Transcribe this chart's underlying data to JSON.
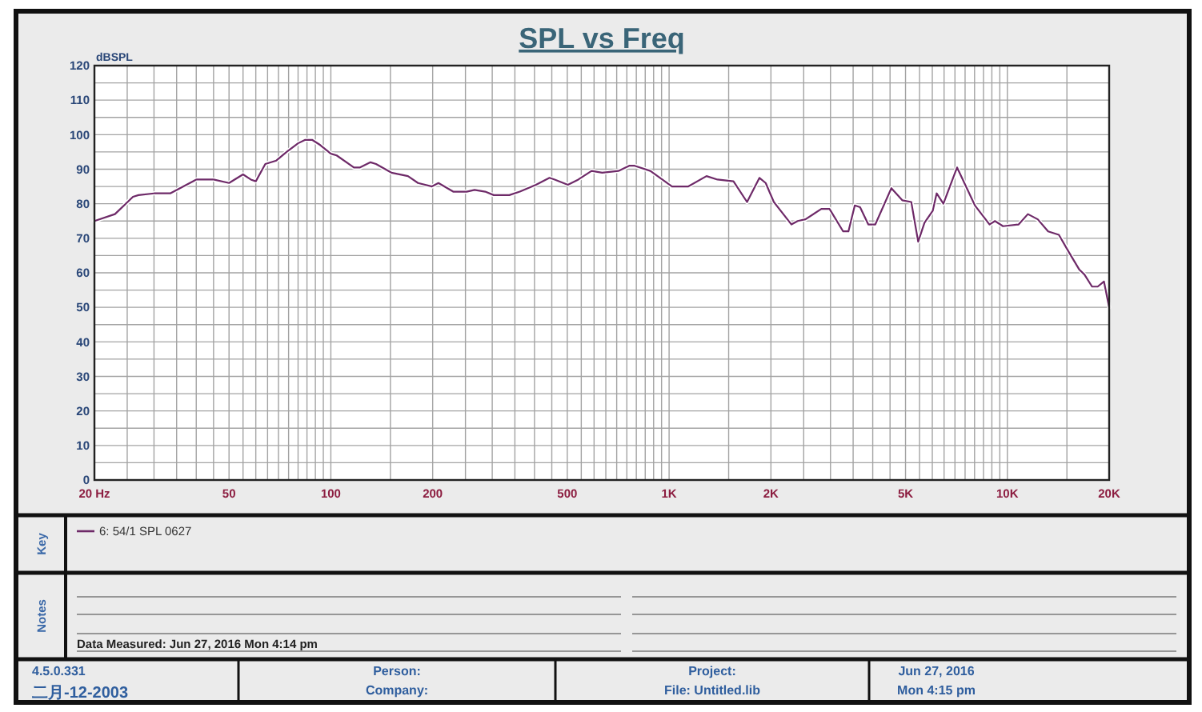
{
  "chart_data": {
    "type": "line",
    "title": "SPL vs Freq",
    "ylabel": "dBSPL",
    "legend_title": "Key",
    "legend": "bottom",
    "grid": true,
    "log": "x",
    "xlim": [
      20,
      20000
    ],
    "xticks": [
      {
        "value": 20,
        "label": "20 Hz"
      },
      {
        "value": 25,
        "label": null
      },
      {
        "value": 30,
        "label": null
      },
      {
        "value": 35,
        "label": null
      },
      {
        "value": 40,
        "label": null
      },
      {
        "value": 45,
        "label": null
      },
      50,
      {
        "value": 55,
        "label": null
      },
      {
        "value": 60,
        "label": null
      },
      {
        "value": 65,
        "label": null
      },
      {
        "value": 70,
        "label": null
      },
      {
        "value": 75,
        "label": null
      },
      {
        "value": 80,
        "label": null
      },
      {
        "value": 85,
        "label": null
      },
      {
        "value": 90,
        "label": null
      },
      {
        "value": 95,
        "label": null
      },
      100,
      {
        "value": 150,
        "label": null
      },
      200,
      {
        "value": 250,
        "label": null
      },
      {
        "value": 300,
        "label": null
      },
      {
        "value": 350,
        "label": null
      },
      {
        "value": 400,
        "label": null
      },
      {
        "value": 450,
        "label": null
      },
      500,
      {
        "value": 550,
        "label": null
      },
      {
        "value": 600,
        "label": null
      },
      {
        "value": 650,
        "label": null
      },
      {
        "value": 700,
        "label": null
      },
      {
        "value": 750,
        "label": null
      },
      {
        "value": 800,
        "label": null
      },
      {
        "value": 850,
        "label": null
      },
      {
        "value": 900,
        "label": null
      },
      {
        "value": 950,
        "label": null
      },
      {
        "value": 1000,
        "label": "1K"
      },
      {
        "value": 1500,
        "label": null
      },
      {
        "value": 2000,
        "label": "2K"
      },
      {
        "value": 2500,
        "label": null
      },
      {
        "value": 3000,
        "label": null
      },
      {
        "value": 3500,
        "label": null
      },
      {
        "value": 4000,
        "label": null
      },
      {
        "value": 4500,
        "label": null
      },
      {
        "value": 5000,
        "label": "5K"
      },
      {
        "value": 5500,
        "label": null
      },
      {
        "value": 6000,
        "label": null
      },
      {
        "value": 6500,
        "label": null
      },
      {
        "value": 7000,
        "label": null
      },
      {
        "value": 7500,
        "label": null
      },
      {
        "value": 8000,
        "label": null
      },
      {
        "value": 8500,
        "label": null
      },
      {
        "value": 9000,
        "label": null
      },
      {
        "value": 9500,
        "label": null
      },
      {
        "value": 10000,
        "label": "10K"
      },
      {
        "value": 15000,
        "label": null
      },
      {
        "value": 20000,
        "label": "20K"
      }
    ],
    "ylim": [
      0,
      120
    ],
    "yticks": [
      0,
      {
        "value": 5,
        "label": null
      },
      10,
      {
        "value": 15,
        "label": null
      },
      20,
      {
        "value": 25,
        "label": null
      },
      30,
      {
        "value": 35,
        "label": null
      },
      40,
      {
        "value": 45,
        "label": null
      },
      50,
      {
        "value": 55,
        "label": null
      },
      60,
      {
        "value": 65,
        "label": null
      },
      70,
      {
        "value": 75,
        "label": null
      },
      80,
      {
        "value": 85,
        "label": null
      },
      90,
      {
        "value": 95,
        "label": null
      },
      100,
      {
        "value": 105,
        "label": null
      },
      110,
      {
        "value": 115,
        "label": null
      },
      120
    ],
    "x": [
      20,
      23,
      26,
      27,
      30,
      33.5,
      40,
      42,
      45,
      50,
      55,
      58,
      60,
      64,
      69,
      74,
      80,
      84,
      88,
      93,
      100,
      104,
      117,
      122,
      131,
      136,
      151,
      169,
      181,
      199,
      208,
      230,
      252,
      266,
      286,
      303,
      337,
      362,
      404,
      443,
      459,
      502,
      539,
      590,
      634,
      708,
      762,
      791,
      880,
      1020,
      1140,
      1290,
      1390,
      1550,
      1700,
      1850,
      1930,
      2040,
      2300,
      2400,
      2530,
      2820,
      2980,
      3270,
      3390,
      3540,
      3670,
      3880,
      4070,
      4540,
      4890,
      5200,
      5450,
      5690,
      6020,
      6180,
      6470,
      7100,
      8020,
      8860,
      9190,
      9710,
      10800,
      11500,
      12300,
      13200,
      14200,
      15200,
      16300,
      16900,
      17800,
      18500,
      19300,
      20000
    ],
    "series": [
      {
        "name": "6: 54/1 SPL 0627",
        "color": "#6e2a68",
        "values": [
          75,
          77,
          82,
          82.5,
          83,
          83,
          87,
          87,
          87,
          86,
          88.5,
          87,
          86.5,
          91.5,
          92.5,
          95,
          97.5,
          98.5,
          98.5,
          97,
          94.5,
          94,
          90.5,
          90.5,
          92,
          91.5,
          89,
          88,
          86,
          85,
          86,
          83.5,
          83.5,
          84,
          83.5,
          82.5,
          82.5,
          83.5,
          85.5,
          87.5,
          87,
          85.5,
          87,
          89.5,
          89,
          89.5,
          91,
          91,
          89.5,
          85,
          85,
          88,
          87,
          86.5,
          80.5,
          87.5,
          86,
          80.5,
          74,
          75,
          75.5,
          78.5,
          78.5,
          72,
          72,
          79.5,
          79,
          74,
          74,
          84.5,
          81,
          80.5,
          69,
          74.5,
          78,
          83,
          80,
          90.5,
          79.5,
          74,
          75,
          73.5,
          74,
          77,
          75.5,
          72,
          71,
          66,
          61,
          59.5,
          56,
          56,
          57.5,
          50
        ]
      }
    ],
    "annotations": [
      "Notes",
      "Data Measured: Jun 27, 2016 Mon 4:14 pm",
      "4.5.0.331",
      "二月-12-2003",
      "Person:",
      "Company:",
      "Project:",
      "File: Untitled.lib",
      "Jun 27, 2016",
      "Mon 4:15 pm"
    ]
  }
}
